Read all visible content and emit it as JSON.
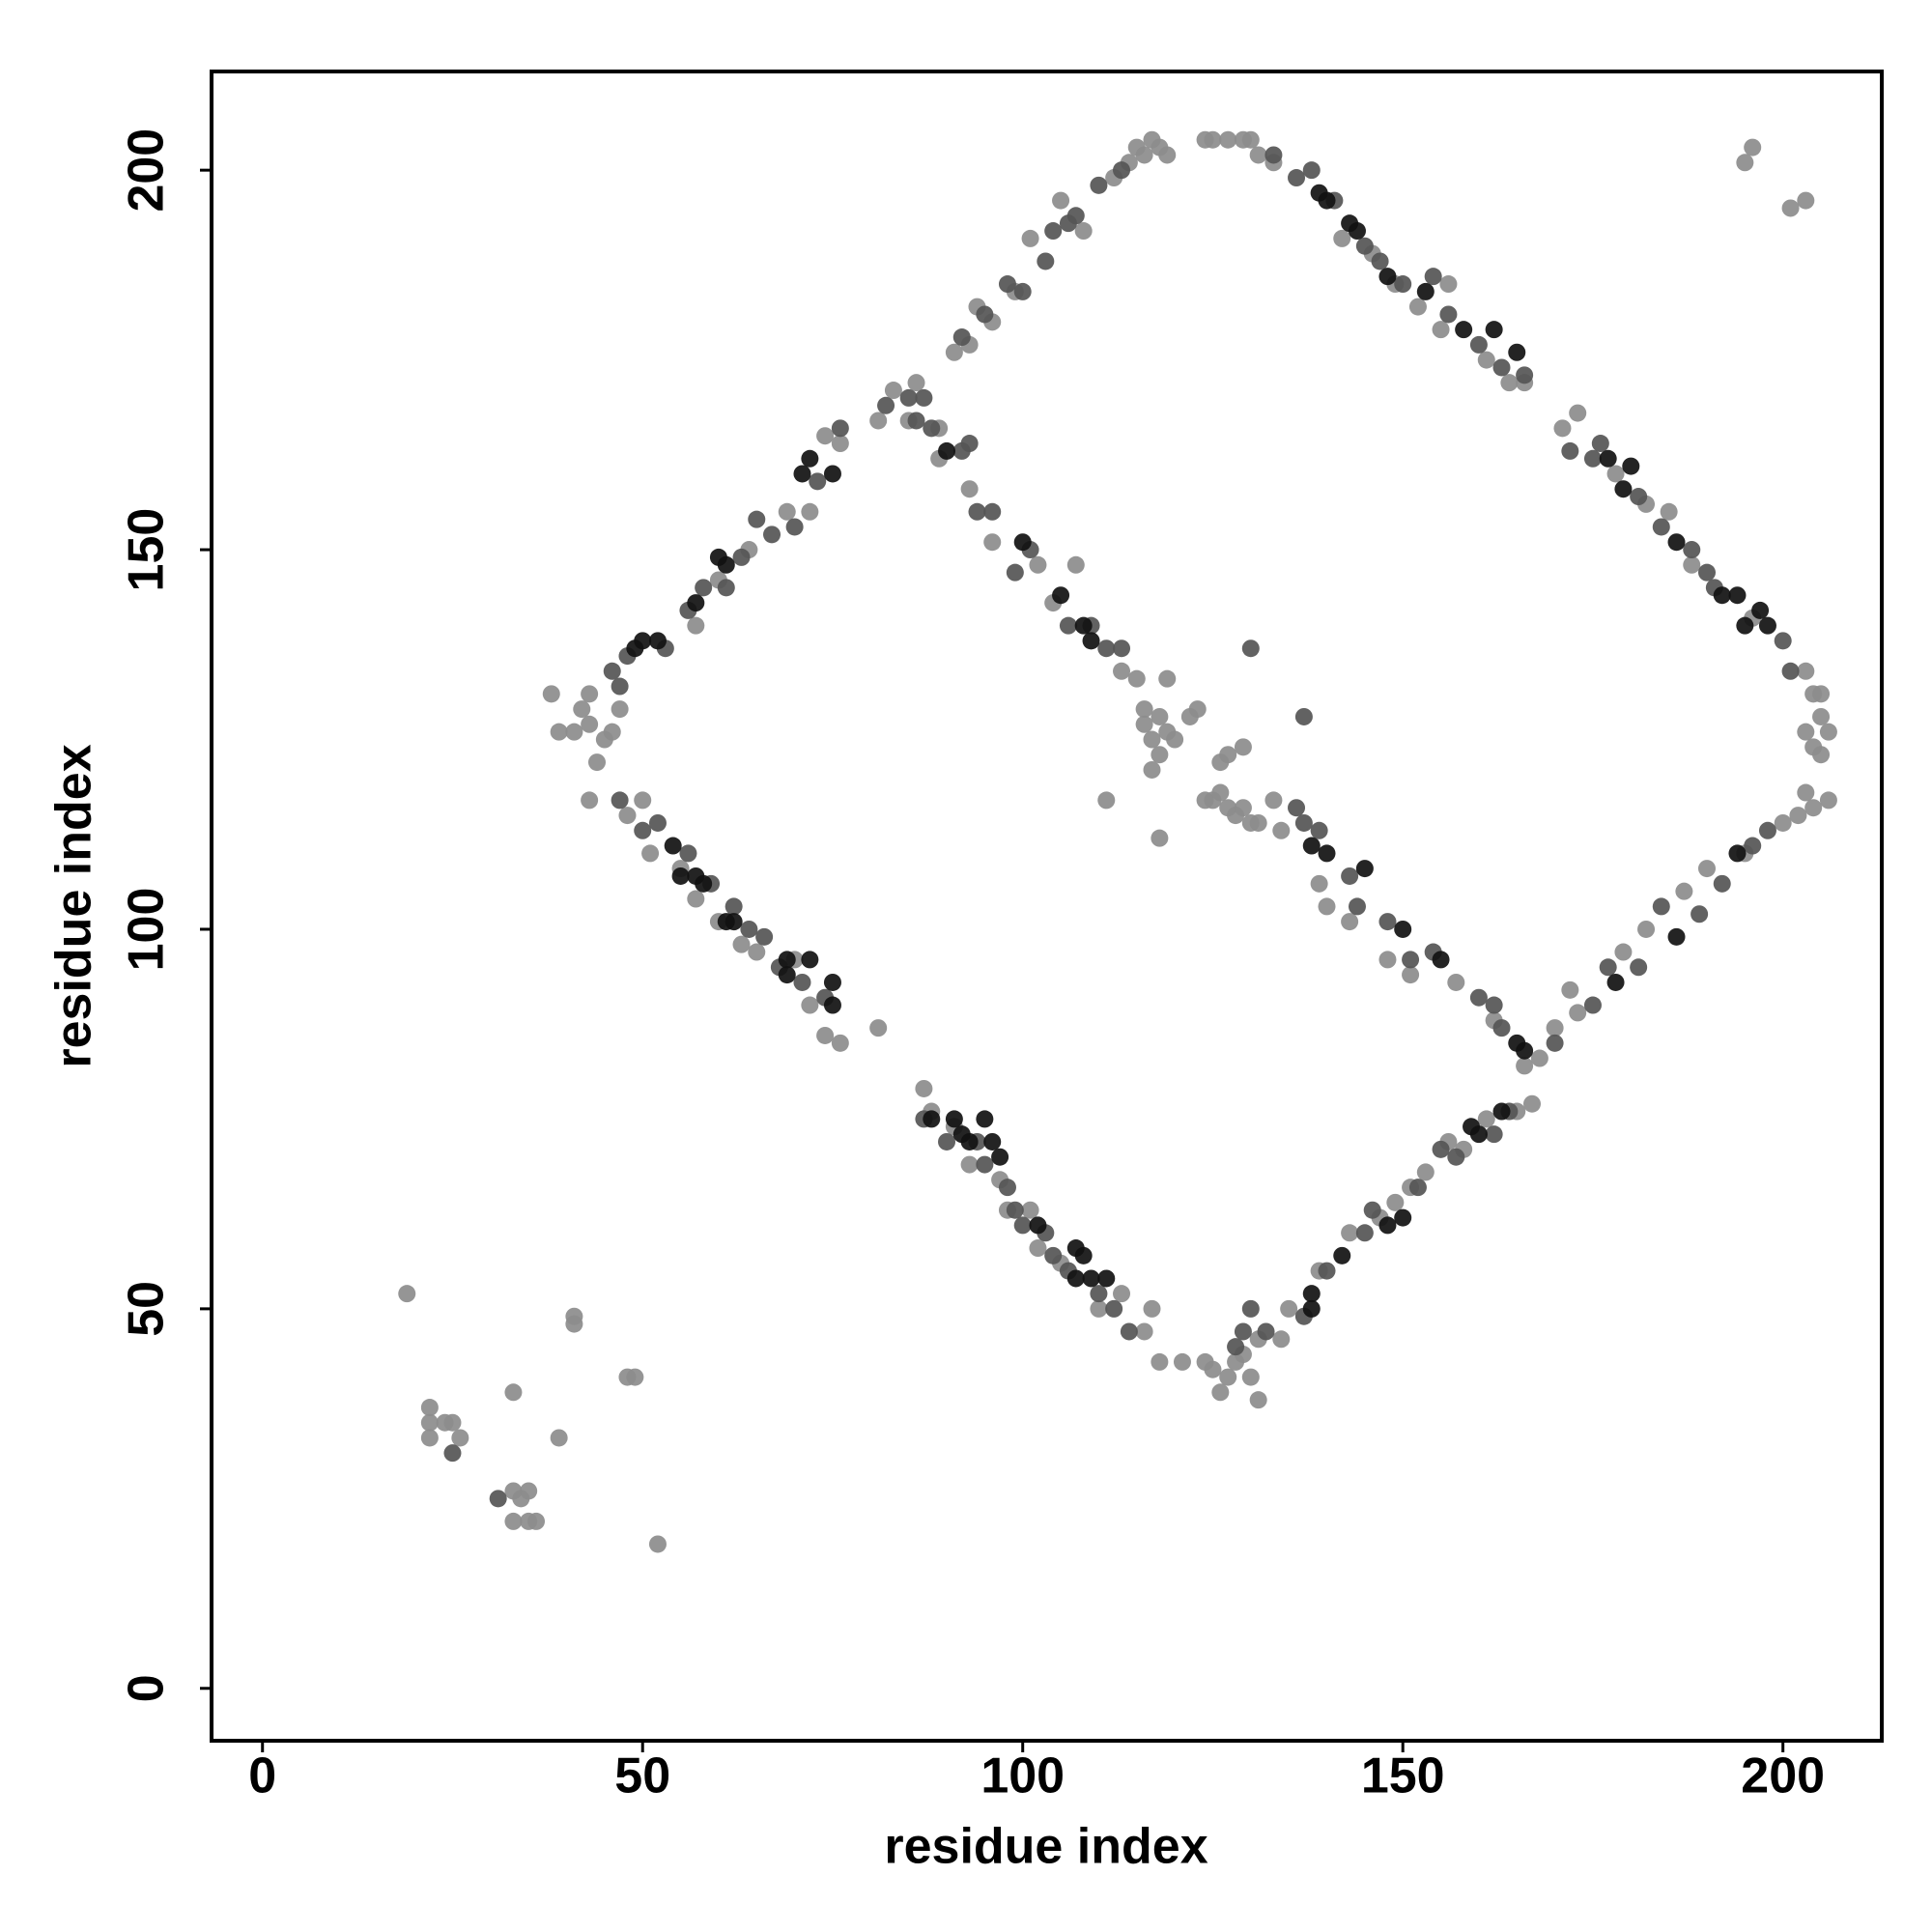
{
  "chart_data": {
    "type": "scatter",
    "xlabel": "residue index",
    "ylabel": "residue index",
    "xlim": [
      -6.7,
      213
    ],
    "ylim": [
      -6.9,
      213
    ],
    "xticks": [
      0,
      50,
      100,
      150,
      200
    ],
    "yticks": [
      0,
      50,
      100,
      150,
      200
    ],
    "series": [
      {
        "color": "#8c8c8c",
        "x": [
          38,
          39,
          41,
          42,
          43,
          43,
          44,
          45,
          46,
          47,
          57,
          60,
          64,
          69,
          72,
          74,
          76,
          81,
          83,
          86,
          89,
          91,
          93,
          94,
          96,
          99,
          101,
          105,
          108,
          112,
          114,
          115,
          116,
          117,
          118,
          119,
          124,
          125,
          127,
          129,
          130,
          131,
          133,
          142,
          146,
          149,
          152,
          155,
          156,
          161,
          164,
          166,
          171,
          173,
          178,
          182,
          185,
          188,
          196,
          203,
          204,
          205,
          203,
          204,
          205,
          206,
          205,
          202,
          203,
          204,
          206,
          200,
          195,
          190,
          187,
          182,
          179,
          173,
          172,
          170,
          168,
          166,
          124,
          125,
          126,
          127,
          128,
          129,
          130,
          131,
          131,
          134,
          135,
          139,
          143,
          147,
          149,
          151,
          153,
          156,
          158,
          161,
          165,
          167,
          43,
          48,
          50,
          51,
          55,
          57,
          60,
          63,
          65,
          70,
          72,
          74,
          76,
          81,
          87,
          88,
          91,
          93,
          97,
          98,
          101,
          102,
          105,
          110,
          113,
          116,
          117,
          118,
          121,
          85,
          89,
          93,
          96,
          102,
          104,
          107,
          113,
          115,
          116,
          116,
          117,
          118,
          118,
          119,
          120,
          119,
          117,
          122,
          123,
          124,
          125,
          126,
          127,
          128,
          129,
          130,
          131,
          133,
          134,
          139,
          140,
          143,
          148,
          151,
          157,
          162,
          118,
          111,
          126,
          127,
          129,
          19,
          22,
          22,
          22,
          24,
          25,
          26,
          33,
          33,
          33,
          34,
          35,
          35,
          36,
          39,
          41,
          41,
          48,
          49,
          52,
          195,
          196,
          201,
          203
        ],
        "values": [
          131,
          126,
          126,
          129,
          127,
          131,
          122,
          125,
          126,
          129,
          140,
          146,
          150,
          155,
          155,
          165,
          164,
          167,
          171,
          172,
          166,
          176,
          177,
          182,
          180,
          184,
          191,
          196,
          192,
          199,
          201,
          203,
          202,
          204,
          203,
          202,
          204,
          204,
          204,
          204,
          204,
          202,
          201,
          191,
          189,
          185,
          182,
          179,
          185,
          175,
          172,
          172,
          166,
          168,
          160,
          156,
          155,
          148,
          141,
          134,
          131,
          131,
          126,
          124,
          128,
          126,
          123,
          115,
          118,
          116,
          117,
          114,
          110,
          108,
          105,
          100,
          97,
          89,
          92,
          87,
          83,
          82,
          43,
          42,
          39,
          41,
          43,
          44,
          41,
          38,
          46,
          46,
          50,
          55,
          60,
          62,
          64,
          66,
          68,
          72,
          71,
          75,
          76,
          77,
          117,
          115,
          117,
          110,
          108,
          104,
          101,
          98,
          97,
          96,
          90,
          86,
          85,
          87,
          79,
          76,
          74,
          69,
          67,
          63,
          63,
          58,
          56,
          50,
          52,
          47,
          50,
          43,
          43,
          167,
          162,
          158,
          151,
          148,
          143,
          148,
          134,
          133,
          129,
          127,
          125,
          123,
          128,
          126,
          125,
          133,
          121,
          128,
          129,
          117,
          117,
          118,
          116,
          115,
          116,
          114,
          114,
          117,
          113,
          106,
          103,
          101,
          96,
          94,
          93,
          88,
          112,
          117,
          122,
          123,
          124,
          52,
          37,
          35,
          33,
          35,
          35,
          33,
          39,
          26,
          22,
          25,
          26,
          22,
          22,
          33,
          48,
          49,
          41,
          41,
          19,
          201,
          203,
          195,
          196
        ]
      },
      {
        "color": "#555555",
        "x": [
          46,
          47,
          48,
          53,
          56,
          58,
          61,
          63,
          65,
          67,
          70,
          73,
          76,
          82,
          85,
          87,
          92,
          95,
          98,
          100,
          103,
          104,
          106,
          107,
          110,
          113,
          133,
          136,
          138,
          141,
          145,
          147,
          150,
          154,
          156,
          160,
          163,
          166,
          172,
          175,
          176,
          181,
          184,
          188,
          190,
          191,
          200,
          201,
          128,
          129,
          130,
          132,
          137,
          140,
          145,
          146,
          152,
          155,
          157,
          162,
          164,
          170,
          175,
          177,
          181,
          184,
          189,
          192,
          196,
          198,
          47,
          50,
          52,
          56,
          59,
          62,
          64,
          66,
          68,
          71,
          74,
          87,
          90,
          94,
          95,
          98,
          99,
          100,
          103,
          104,
          106,
          110,
          112,
          114,
          86,
          88,
          92,
          93,
          94,
          96,
          99,
          101,
          106,
          109,
          111,
          113,
          136,
          137,
          139,
          143,
          144,
          148,
          151,
          154,
          160,
          162,
          163,
          130,
          137,
          25,
          31
        ],
        "values": [
          134,
          132,
          136,
          137,
          142,
          145,
          145,
          149,
          154,
          152,
          153,
          159,
          166,
          169,
          170,
          170,
          178,
          181,
          185,
          184,
          188,
          192,
          193,
          194,
          198,
          200,
          202,
          199,
          200,
          196,
          190,
          188,
          185,
          186,
          181,
          177,
          174,
          173,
          163,
          162,
          164,
          157,
          153,
          150,
          147,
          145,
          138,
          134,
          45,
          47,
          50,
          47,
          49,
          55,
          60,
          63,
          66,
          71,
          70,
          73,
          76,
          85,
          90,
          95,
          95,
          103,
          102,
          106,
          111,
          113,
          117,
          113,
          114,
          110,
          106,
          103,
          100,
          99,
          95,
          93,
          91,
          75,
          72,
          72,
          69,
          66,
          63,
          61,
          60,
          57,
          55,
          52,
          50,
          47,
          167,
          166,
          163,
          164,
          155,
          155,
          147,
          150,
          140,
          140,
          137,
          137,
          116,
          114,
          113,
          107,
          103,
          101,
          96,
          97,
          91,
          90,
          87,
          137,
          128,
          31,
          25
        ]
      },
      {
        "color": "#111111",
        "x": [
          57,
          60,
          61,
          71,
          72,
          75,
          49,
          50,
          52,
          139,
          140,
          143,
          144,
          148,
          153,
          158,
          162,
          165,
          177,
          179,
          180,
          186,
          192,
          194,
          195,
          197,
          198,
          138,
          138,
          142,
          148,
          150,
          159,
          160,
          163,
          178,
          186,
          194,
          54,
          55,
          57,
          58,
          61,
          62,
          69,
          72,
          75,
          75,
          69,
          88,
          91,
          92,
          93,
          95,
          96,
          97,
          102,
          107,
          108,
          109,
          111,
          107,
          90,
          100,
          105,
          108,
          109,
          145,
          150,
          155,
          165,
          166,
          138,
          140
        ],
        "values": [
          143,
          149,
          148,
          160,
          162,
          160,
          137,
          138,
          138,
          197,
          196,
          193,
          192,
          186,
          184,
          179,
          179,
          176,
          162,
          158,
          161,
          151,
          144,
          144,
          140,
          142,
          140,
          50,
          52,
          57,
          61,
          62,
          74,
          73,
          76,
          93,
          99,
          110,
          111,
          107,
          107,
          106,
          101,
          101,
          96,
          96,
          93,
          90,
          94,
          75,
          75,
          73,
          72,
          75,
          72,
          70,
          61,
          58,
          57,
          54,
          54,
          54,
          163,
          151,
          144,
          140,
          138,
          108,
          100,
          96,
          85,
          84,
          111,
          110
        ]
      }
    ]
  }
}
